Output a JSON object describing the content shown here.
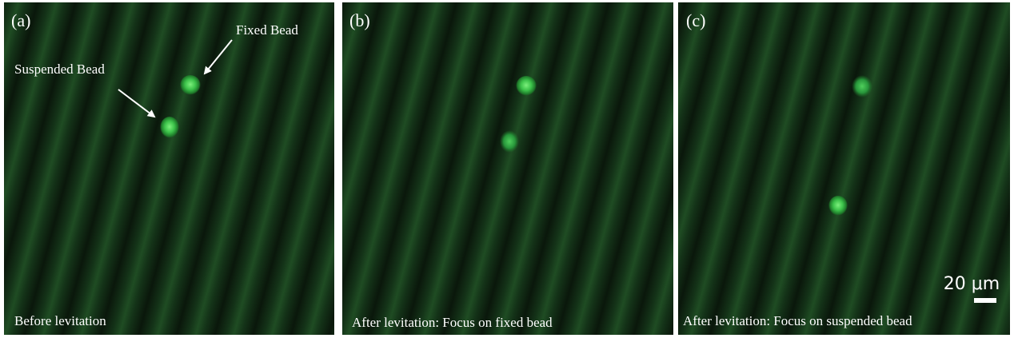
{
  "panels": [
    {
      "label": "(a)",
      "caption": "Before levitation",
      "annotations": [
        "Fixed Bead",
        "Suspended Bead"
      ]
    },
    {
      "label": "(b)",
      "caption": "After levitation: Focus on fixed bead"
    },
    {
      "label": "(c)",
      "caption": "After levitation: Focus on suspended bead",
      "scale_bar": "20 μm"
    }
  ]
}
